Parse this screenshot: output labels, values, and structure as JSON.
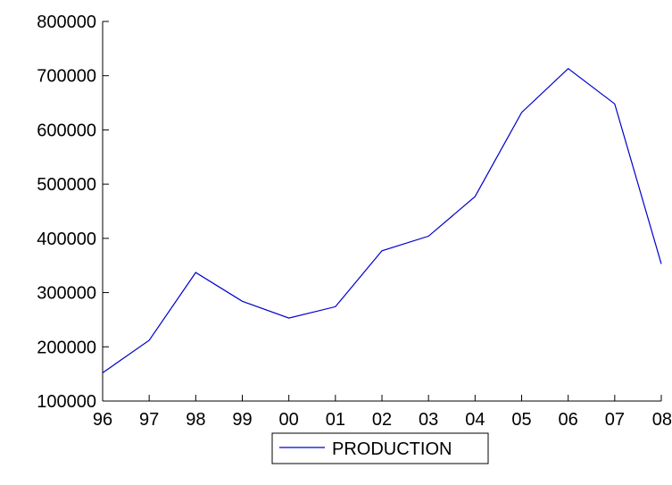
{
  "chart_data": {
    "type": "line",
    "title": "",
    "xlabel": "",
    "ylabel": "",
    "categories": [
      "96",
      "97",
      "98",
      "99",
      "00",
      "01",
      "02",
      "03",
      "04",
      "05",
      "06",
      "07",
      "08"
    ],
    "series": [
      {
        "name": "PRODUCTION",
        "color": "#0000cc",
        "values": [
          152000,
          212000,
          337000,
          284000,
          253000,
          274000,
          377000,
          404000,
          477000,
          632000,
          713000,
          648000,
          353000
        ]
      }
    ],
    "ylim": [
      100000,
      800000
    ],
    "yticks": [
      "100000",
      "200000",
      "300000",
      "400000",
      "500000",
      "600000",
      "700000",
      "800000"
    ],
    "grid": false,
    "legend": {
      "placement": "bottom-center",
      "entries": [
        "PRODUCTION"
      ]
    }
  }
}
